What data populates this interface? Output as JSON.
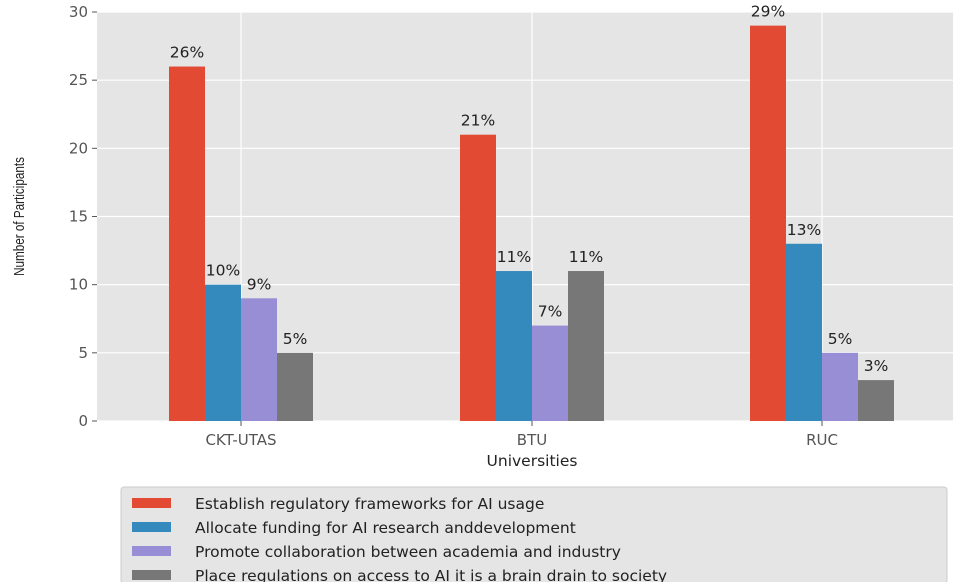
{
  "chart_data": {
    "type": "bar",
    "categories": [
      "CKT-UTAS",
      "BTU",
      "RUC"
    ],
    "xlabel": "Universities",
    "ylabel": "Number of Participants",
    "ylim": [
      0,
      30
    ],
    "yticks": [
      0,
      5,
      10,
      15,
      20,
      25,
      30
    ],
    "grid": true,
    "legend_position": "bottom",
    "series": [
      {
        "name": "Establish regulatory frameworks for AI usage",
        "color": "#E24A33",
        "values": [
          26,
          21,
          29
        ],
        "labels": [
          "26%",
          "21%",
          "29%"
        ]
      },
      {
        "name": "Allocate funding for AI research anddevelopment",
        "color": "#348ABD",
        "values": [
          10,
          11,
          13
        ],
        "labels": [
          "10%",
          "11%",
          "13%"
        ]
      },
      {
        "name": "Promote collaboration between academia and industry",
        "color": "#988ED5",
        "values": [
          9,
          7,
          5
        ],
        "labels": [
          "9%",
          "7%",
          "5%"
        ]
      },
      {
        "name": "Place regulations on access to AI it is a brain drain to society",
        "color": "#777777",
        "values": [
          5,
          11,
          3
        ],
        "labels": [
          "5%",
          "11%",
          "3%"
        ]
      }
    ]
  }
}
